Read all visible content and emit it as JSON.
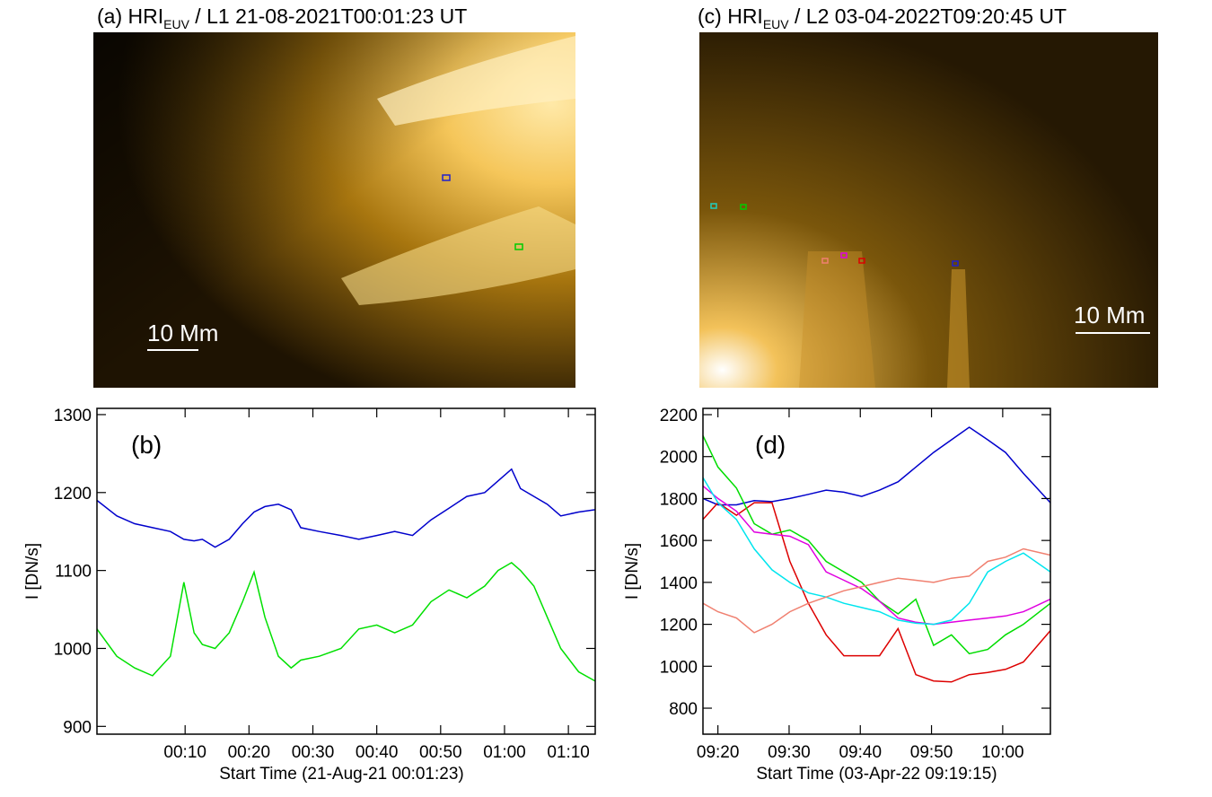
{
  "images": [
    {
      "title": "(a) HRI",
      "title_sub": "EUV",
      "title_rest": " / L1 21-08-2021T00:01:23 UT",
      "scale_label": "10 Mm"
    },
    {
      "title": "(c) HRI",
      "title_sub": "EUV",
      "title_rest": " / L2 03-04-2022T09:20:45 UT",
      "scale_label": "10 Mm"
    }
  ],
  "chart_data": [
    {
      "type": "line",
      "panel_label": "(b)",
      "ylabel": "I [DN/s]",
      "xlabel": "Start Time (21-Aug-21 00:01:23)",
      "x": [
        -3.8,
        -0.7,
        2.1,
        4.9,
        7.7,
        9.8,
        11.4,
        12.7,
        14.7,
        16.9,
        19.0,
        20.8,
        22.5,
        24.6,
        26.6,
        28.1,
        31.0,
        34.4,
        37.2,
        40.0,
        42.8,
        45.6,
        48.5,
        51.3,
        54.1,
        56.9,
        59.0,
        61.1,
        62.5,
        64.6,
        66.7,
        68.8,
        71.6,
        74.2
      ],
      "series": [
        {
          "color": "#0000cc",
          "values": [
            1190,
            1170,
            1160,
            1155,
            1150,
            1140,
            1138,
            1140,
            1130,
            1140,
            1160,
            1175,
            1182,
            1185,
            1178,
            1155,
            1150,
            1145,
            1140,
            1145,
            1150,
            1145,
            1165,
            1180,
            1195,
            1200,
            1215,
            1230,
            1205,
            1195,
            1185,
            1170,
            1175,
            1178
          ]
        },
        {
          "color": "#00e000",
          "values": [
            1025,
            990,
            975,
            965,
            990,
            1085,
            1020,
            1005,
            1000,
            1020,
            1060,
            1098,
            1040,
            990,
            975,
            985,
            990,
            1000,
            1025,
            1030,
            1020,
            1030,
            1060,
            1075,
            1065,
            1080,
            1100,
            1110,
            1100,
            1080,
            1040,
            1000,
            970,
            958
          ]
        }
      ],
      "xlim": [
        -3.8,
        74.2
      ],
      "ylim": [
        890,
        1308
      ],
      "xticks": [
        {
          "value": 10,
          "label": "00:10"
        },
        {
          "value": 20,
          "label": "00:20"
        },
        {
          "value": 30,
          "label": "00:30"
        },
        {
          "value": 40,
          "label": "00:40"
        },
        {
          "value": 50,
          "label": "00:50"
        },
        {
          "value": 60,
          "label": "01:00"
        },
        {
          "value": 70,
          "label": "01:10"
        }
      ],
      "yticks": [
        900,
        1000,
        1100,
        1200,
        1300
      ]
    },
    {
      "type": "line",
      "panel_label": "(d)",
      "ylabel": "I [DN/s]",
      "xlabel": "Start Time (03-Apr-22 09:19:15)",
      "x": [
        17.9,
        20.0,
        22.6,
        25.1,
        27.6,
        30.1,
        32.7,
        35.2,
        37.7,
        40.2,
        42.7,
        45.3,
        47.8,
        50.3,
        52.8,
        55.3,
        57.9,
        60.4,
        62.9,
        66.7
      ],
      "series": [
        {
          "color": "#0000cc",
          "values": [
            1800,
            1770,
            1770,
            1790,
            1785,
            1800,
            1820,
            1840,
            1830,
            1810,
            1840,
            1880,
            1950,
            2020,
            2080,
            2140,
            2080,
            2020,
            1920,
            1780
          ]
        },
        {
          "color": "#dd0000",
          "values": [
            1700,
            1780,
            1720,
            1780,
            1780,
            1500,
            1300,
            1150,
            1050,
            1050,
            1050,
            1180,
            960,
            930,
            925,
            960,
            970,
            985,
            1020,
            1170
          ]
        },
        {
          "color": "#00dd00",
          "values": [
            2100,
            1950,
            1850,
            1680,
            1630,
            1650,
            1600,
            1500,
            1450,
            1400,
            1310,
            1250,
            1320,
            1100,
            1150,
            1060,
            1080,
            1150,
            1200,
            1300
          ]
        },
        {
          "color": "#e000e0",
          "values": [
            1860,
            1800,
            1740,
            1640,
            1630,
            1620,
            1580,
            1450,
            1410,
            1370,
            1310,
            1230,
            1210,
            1200,
            1210,
            1220,
            1230,
            1240,
            1260,
            1320
          ]
        },
        {
          "color": "#00e5ee",
          "values": [
            1900,
            1780,
            1700,
            1560,
            1460,
            1400,
            1350,
            1330,
            1300,
            1280,
            1260,
            1220,
            1205,
            1200,
            1220,
            1300,
            1450,
            1500,
            1540,
            1450
          ]
        },
        {
          "color": "#f08070",
          "values": [
            1300,
            1260,
            1230,
            1160,
            1200,
            1260,
            1300,
            1330,
            1360,
            1380,
            1400,
            1420,
            1410,
            1400,
            1420,
            1430,
            1500,
            1520,
            1560,
            1530
          ]
        }
      ],
      "xlim": [
        17.9,
        66.7
      ],
      "ylim": [
        676,
        2230
      ],
      "xticks": [
        {
          "value": 20,
          "label": "09:20"
        },
        {
          "value": 30,
          "label": "09:30"
        },
        {
          "value": 40,
          "label": "09:40"
        },
        {
          "value": 50,
          "label": "09:50"
        },
        {
          "value": 60,
          "label": "10:00"
        }
      ],
      "yticks": [
        800,
        1000,
        1200,
        1400,
        1600,
        1800,
        2000,
        2200
      ]
    }
  ]
}
